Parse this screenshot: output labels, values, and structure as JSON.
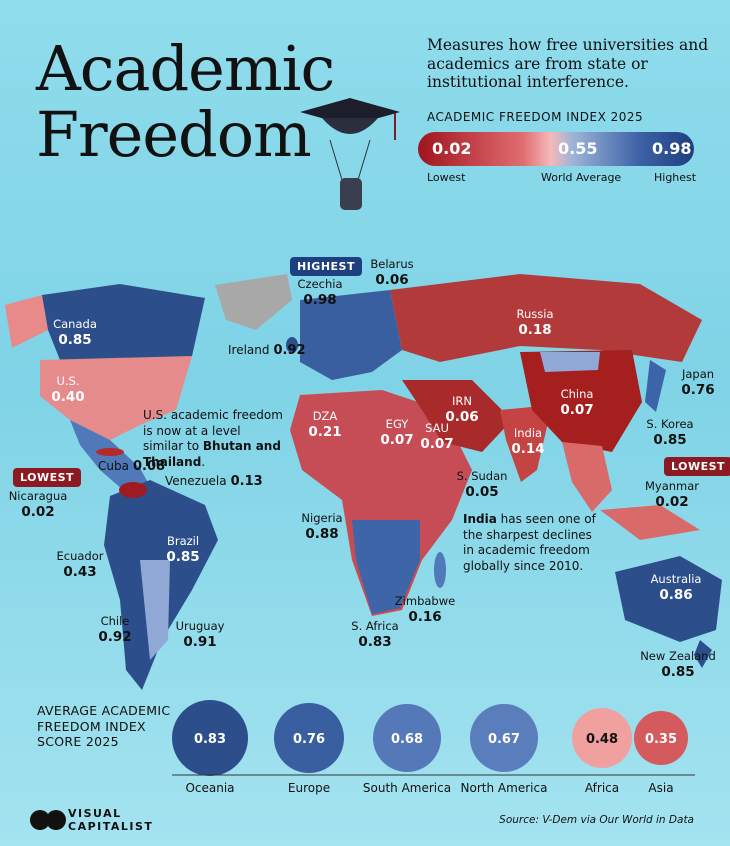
{
  "header": {
    "title_line1": "Academic",
    "title_line2": "Freedom",
    "description": "Measures how free universities and academics are from state or institutional interference."
  },
  "legend": {
    "title": "ACADEMIC FREEDOM INDEX 2025",
    "low": "0.02",
    "mid": "0.55",
    "high": "0.98",
    "low_label": "Lowest",
    "mid_label": "World Average",
    "high_label": "Highest"
  },
  "badges": {
    "highest": "HIGHEST",
    "lowest_americas": "LOWEST",
    "lowest_asia": "LOWEST"
  },
  "countries": [
    {
      "name": "Canada",
      "value": "0.85"
    },
    {
      "name": "U.S.",
      "value": "0.40"
    },
    {
      "name": "Cuba",
      "value": "0.08"
    },
    {
      "name": "Nicaragua",
      "value": "0.02"
    },
    {
      "name": "Venezuela",
      "value": "0.13"
    },
    {
      "name": "Ecuador",
      "value": "0.43"
    },
    {
      "name": "Brazil",
      "value": "0.85"
    },
    {
      "name": "Chile",
      "value": "0.92"
    },
    {
      "name": "Uruguay",
      "value": "0.91"
    },
    {
      "name": "Ireland",
      "value": "0.92"
    },
    {
      "name": "Czechia",
      "value": "0.98"
    },
    {
      "name": "Belarus",
      "value": "0.06"
    },
    {
      "name": "Russia",
      "value": "0.18"
    },
    {
      "name": "DZA",
      "value": "0.21"
    },
    {
      "name": "EGY",
      "value": "0.07"
    },
    {
      "name": "IRN",
      "value": "0.06"
    },
    {
      "name": "SAU",
      "value": "0.07"
    },
    {
      "name": "India",
      "value": "0.14"
    },
    {
      "name": "China",
      "value": "0.07"
    },
    {
      "name": "Japan",
      "value": "0.76"
    },
    {
      "name": "S. Korea",
      "value": "0.85"
    },
    {
      "name": "Myanmar",
      "value": "0.02"
    },
    {
      "name": "S. Sudan",
      "value": "0.05"
    },
    {
      "name": "Nigeria",
      "value": "0.88"
    },
    {
      "name": "Zimbabwe",
      "value": "0.16"
    },
    {
      "name": "S. Africa",
      "value": "0.83"
    },
    {
      "name": "Australia",
      "value": "0.86"
    },
    {
      "name": "New Zealand",
      "value": "0.85"
    }
  ],
  "notes": {
    "us": [
      "U.S. academic freedom is now at a level similar to ",
      "Bhutan and Thailand",
      "."
    ],
    "india": [
      "India",
      " has seen one of the sharpest declines in academic freedom globally since 2010."
    ]
  },
  "averages": {
    "title": "AVERAGE ACADEMIC FREEDOM INDEX SCORE 2025",
    "regions": [
      {
        "name": "Oceania",
        "value": "0.83"
      },
      {
        "name": "Europe",
        "value": "0.76"
      },
      {
        "name": "South America",
        "value": "0.68"
      },
      {
        "name": "North America",
        "value": "0.67"
      },
      {
        "name": "Africa",
        "value": "0.48"
      },
      {
        "name": "Asia",
        "value": "0.35"
      }
    ]
  },
  "footer": {
    "logo_line1": "VISUAL",
    "logo_line2": "CAPITALIST",
    "source": "Source: V-Dem via Our World in Data"
  }
}
